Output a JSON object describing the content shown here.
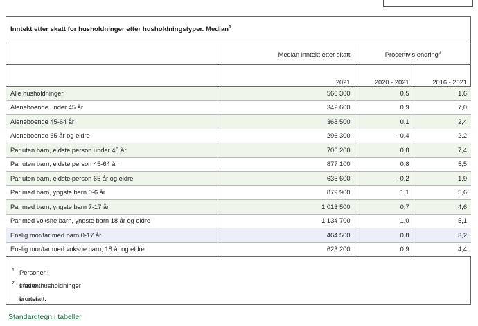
{
  "table": {
    "caption": "Inntekt etter skatt for husholdninger etter husholdningstyper. Median",
    "caption_sup": "1",
    "header": {
      "median_group": "Median inntekt etter skatt",
      "change_group": "Prosentvis endring",
      "change_sup": "2",
      "year": "2021",
      "period1": "2020 - 2021",
      "period2": "2016 - 2021"
    },
    "rows": [
      {
        "label": "Alle husholdninger",
        "median": "566 300",
        "chg1": "0,5",
        "chg2": "1,6",
        "shade": "g"
      },
      {
        "label": "Aleneboende under 45 år",
        "median": "342 600",
        "chg1": "0,9",
        "chg2": "7,0",
        "shade": "w"
      },
      {
        "label": "Aleneboende 45-64 år",
        "median": "368 500",
        "chg1": "0,1",
        "chg2": "2,4",
        "shade": "g"
      },
      {
        "label": "Aleneboende 65 år og eldre",
        "median": "296 300",
        "chg1": "-0,4",
        "chg2": "2,2",
        "shade": "w"
      },
      {
        "label": "Par uten barn, eldste person under 45 år",
        "median": "706 200",
        "chg1": "0,8",
        "chg2": "7,4",
        "shade": "g"
      },
      {
        "label": "Par uten barn, eldste person 45-64 år",
        "median": "877 100",
        "chg1": "0,8",
        "chg2": "5,5",
        "shade": "w"
      },
      {
        "label": "Par uten barn, eldste person 65 år og eldre",
        "median": "635 600",
        "chg1": "-0,2",
        "chg2": "1,9",
        "shade": "g"
      },
      {
        "label": "Par med barn, yngste barn 0-6 år",
        "median": "879 900",
        "chg1": "1,1",
        "chg2": "5,6",
        "shade": "w"
      },
      {
        "label": "Par med barn, yngste barn 7-17 år",
        "median": "1 013 500",
        "chg1": "0,7",
        "chg2": "4,6",
        "shade": "g"
      },
      {
        "label": "Par med voksne barn, yngste barn 18 år og eldre",
        "median": "1 134 700",
        "chg1": "1,0",
        "chg2": "5,1",
        "shade": "w"
      },
      {
        "label": "Enslig mor/far med barn 0-17 år",
        "median": "464 500",
        "chg1": "0,8",
        "chg2": "3,2",
        "shade": "p"
      },
      {
        "label": "Enslig mor/far med voksne barn, 18 år og eldre",
        "median": "623 200",
        "chg1": "0,9",
        "chg2": "4,4",
        "shade": "w"
      }
    ],
    "footnotes": [
      {
        "mark": "1",
        "text": "Personer i studenthusholdninger er utelatt."
      },
      {
        "mark": "2",
        "text": "I faste kroner"
      }
    ]
  },
  "links": {
    "standard_signs": "Standardtegn i tabeller"
  },
  "colors": {
    "row_green": "#eef6ec",
    "row_purple": "#eceef8",
    "link_green": "#1a6f3c"
  }
}
